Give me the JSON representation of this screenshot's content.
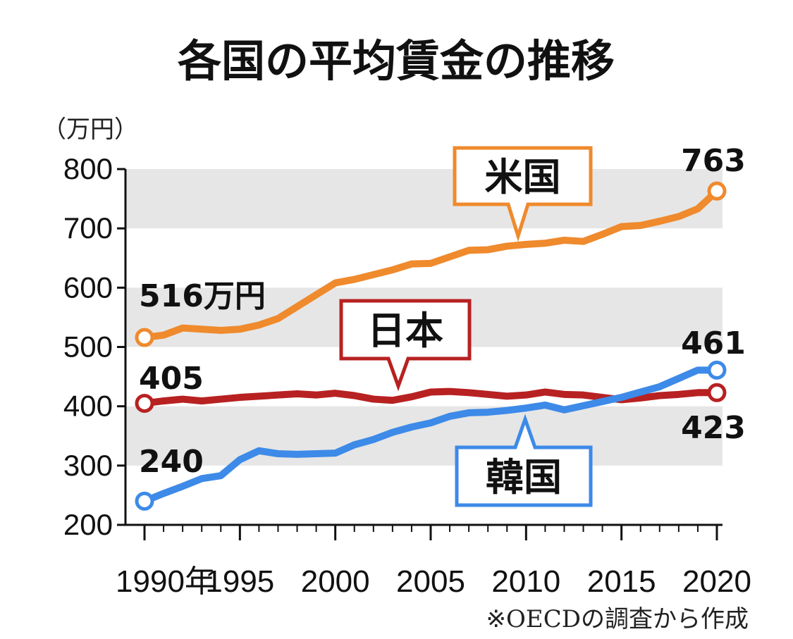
{
  "chart_data": {
    "type": "line",
    "title": "各国の平均賃金の推移",
    "unit": "（万円）",
    "source": "※OECDの調査から作成",
    "ylim": [
      200,
      800
    ],
    "y_ticks": [
      "200",
      "300",
      "400",
      "500",
      "600",
      "700",
      "800"
    ],
    "x_tick_labels": [
      "1990年",
      "1995",
      "2000",
      "2005",
      "2010",
      "2015",
      "2020"
    ],
    "x": [
      1990,
      1991,
      1992,
      1993,
      1994,
      1995,
      1996,
      1997,
      1998,
      1999,
      2000,
      2001,
      2002,
      2003,
      2004,
      2005,
      2006,
      2007,
      2008,
      2009,
      2010,
      2011,
      2012,
      2013,
      2014,
      2015,
      2016,
      2017,
      2018,
      2019,
      2020
    ],
    "grid": "alternating bands",
    "series": [
      {
        "name": "米国",
        "color": "#ef8a2d",
        "values": [
          516,
          520,
          532,
          530,
          528,
          530,
          537,
          548,
          568,
          588,
          608,
          614,
          622,
          630,
          640,
          641,
          652,
          663,
          664,
          670,
          673,
          675,
          680,
          678,
          690,
          703,
          705,
          712,
          720,
          733,
          763
        ],
        "start_label": "516万円",
        "end_label": "763"
      },
      {
        "name": "日本",
        "color": "#b82121",
        "values": [
          405,
          409,
          412,
          409,
          412,
          415,
          417,
          419,
          421,
          419,
          422,
          418,
          412,
          410,
          416,
          424,
          425,
          423,
          420,
          417,
          419,
          424,
          420,
          419,
          415,
          411,
          414,
          418,
          420,
          423,
          423
        ],
        "start_label": "405",
        "end_label": "423"
      },
      {
        "name": "韓国",
        "color": "#3d8ae8",
        "values": [
          240,
          253,
          265,
          278,
          283,
          310,
          325,
          320,
          319,
          320,
          321,
          335,
          344,
          356,
          365,
          372,
          383,
          389,
          390,
          393,
          397,
          402,
          394,
          401,
          408,
          415,
          424,
          433,
          447,
          461,
          461
        ],
        "start_label": "240",
        "end_label": "461"
      }
    ]
  }
}
